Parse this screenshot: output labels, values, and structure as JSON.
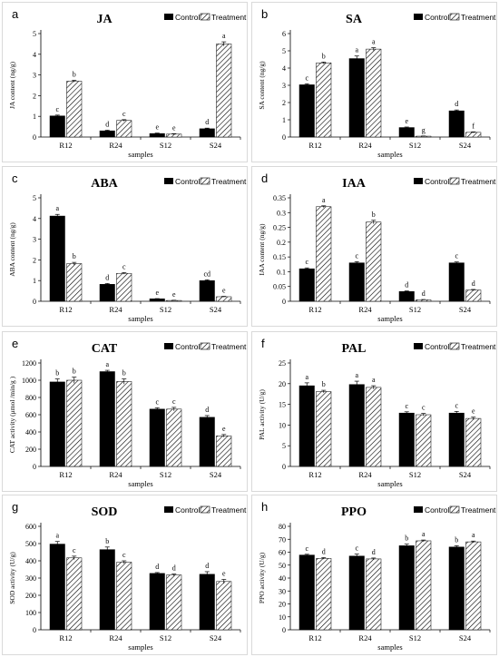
{
  "legend": {
    "control": "Control",
    "treatment": "Treatment"
  },
  "colors": {
    "control": "#000000",
    "treatment_hatch": "#000000",
    "treatment_fill": "#ffffff",
    "border": "#d9d9d9"
  },
  "chart_data": [
    {
      "type": "bar",
      "letter": "a",
      "title": "JA",
      "ylabel": "JA content (ng/g)",
      "xlabel": "samples",
      "categories": [
        "R12",
        "R24",
        "S12",
        "S24"
      ],
      "ylim": [
        0,
        5
      ],
      "yticks": [
        0,
        1,
        2,
        3,
        4,
        5
      ],
      "legend_position": "top-right",
      "series": [
        {
          "name": "Control",
          "values": [
            1.02,
            0.3,
            0.17,
            0.4
          ],
          "errors": [
            0.04,
            0.03,
            0.02,
            0.03
          ],
          "labels": [
            "c",
            "d",
            "e",
            "d"
          ]
        },
        {
          "name": "Treatment",
          "values": [
            2.7,
            0.8,
            0.14,
            4.5
          ],
          "errors": [
            0.04,
            0.04,
            0.02,
            0.1
          ],
          "labels": [
            "b",
            "c",
            "e",
            "a"
          ]
        }
      ]
    },
    {
      "type": "bar",
      "letter": "b",
      "title": "SA",
      "ylabel": "SA content (ng/g)",
      "xlabel": "samples",
      "categories": [
        "R12",
        "R24",
        "S12",
        "S24"
      ],
      "ylim": [
        0,
        6
      ],
      "yticks": [
        0,
        1,
        2,
        3,
        4,
        5,
        6
      ],
      "legend_position": "top-right",
      "series": [
        {
          "name": "Control",
          "values": [
            3.03,
            4.55,
            0.55,
            1.52
          ],
          "errors": [
            0.06,
            0.15,
            0.03,
            0.05
          ],
          "labels": [
            "c",
            "a",
            "e",
            "d"
          ]
        },
        {
          "name": "Treatment",
          "values": [
            4.3,
            5.1,
            0.05,
            0.27
          ],
          "errors": [
            0.05,
            0.08,
            0.01,
            0.03
          ],
          "labels": [
            "b",
            "a",
            "g",
            "f"
          ]
        }
      ]
    },
    {
      "type": "bar",
      "letter": "c",
      "title": "ABA",
      "ylabel": "ABA content (ng/g)",
      "xlabel": "samples",
      "categories": [
        "R12",
        "R24",
        "S12",
        "S24"
      ],
      "ylim": [
        0,
        5
      ],
      "yticks": [
        0,
        1,
        2,
        3,
        4,
        5
      ],
      "legend_position": "top-right",
      "series": [
        {
          "name": "Control",
          "values": [
            4.12,
            0.82,
            0.12,
            1.0
          ],
          "errors": [
            0.08,
            0.04,
            0.01,
            0.04
          ],
          "labels": [
            "a",
            "d",
            "e",
            "cd"
          ]
        },
        {
          "name": "Treatment",
          "values": [
            1.82,
            1.35,
            0.04,
            0.22
          ],
          "errors": [
            0.06,
            0.04,
            0.01,
            0.02
          ],
          "labels": [
            "b",
            "c",
            "e",
            "e"
          ]
        }
      ]
    },
    {
      "type": "bar",
      "letter": "d",
      "title": "IAA",
      "ylabel": "IAA content (ng/g)",
      "xlabel": "samples",
      "categories": [
        "R12",
        "R24",
        "S12",
        "S24"
      ],
      "ylim": [
        0,
        0.35
      ],
      "yticks": [
        0,
        0.05,
        0.1,
        0.15,
        0.2,
        0.25,
        0.3,
        0.35
      ],
      "legend_position": "top-right",
      "series": [
        {
          "name": "Control",
          "values": [
            0.11,
            0.13,
            0.033,
            0.13
          ],
          "errors": [
            0.003,
            0.004,
            0.002,
            0.003
          ],
          "labels": [
            "c",
            "c",
            "d",
            "c"
          ]
        },
        {
          "name": "Treatment",
          "values": [
            0.32,
            0.268,
            0.005,
            0.038
          ],
          "errors": [
            0.003,
            0.006,
            0.001,
            0.002
          ],
          "labels": [
            "a",
            "b",
            "d",
            "d"
          ]
        }
      ]
    },
    {
      "type": "bar",
      "letter": "e",
      "title": "CAT",
      "ylabel": "CAT activity (μmol /min/g )",
      "xlabel": "samples",
      "categories": [
        "R12",
        "R24",
        "S12",
        "S24"
      ],
      "ylim": [
        0,
        1200
      ],
      "yticks": [
        0,
        200,
        400,
        600,
        800,
        1000,
        1200
      ],
      "legend_position": "top-right",
      "series": [
        {
          "name": "Control",
          "values": [
            980,
            1100,
            665,
            570
          ],
          "errors": [
            35,
            15,
            15,
            20
          ],
          "labels": [
            "b",
            "a",
            "c",
            "d"
          ]
        },
        {
          "name": "Treatment",
          "values": [
            1000,
            985,
            665,
            355
          ],
          "errors": [
            35,
            30,
            20,
            15
          ],
          "labels": [
            "b",
            "b",
            "c",
            "e"
          ]
        }
      ]
    },
    {
      "type": "bar",
      "letter": "f",
      "title": "PAL",
      "ylabel": "PAL activity (U/g)",
      "xlabel": "samples",
      "categories": [
        "R12",
        "R24",
        "S12",
        "S24"
      ],
      "ylim": [
        0,
        25
      ],
      "yticks": [
        0,
        5,
        10,
        15,
        20,
        25
      ],
      "legend_position": "top-right",
      "series": [
        {
          "name": "Control",
          "values": [
            19.5,
            19.8,
            12.9,
            12.9
          ],
          "errors": [
            0.7,
            0.8,
            0.3,
            0.4
          ],
          "labels": [
            "a",
            "a",
            "c",
            "c"
          ]
        },
        {
          "name": "Treatment",
          "values": [
            18.1,
            19.1,
            12.5,
            11.6
          ],
          "errors": [
            0.3,
            0.4,
            0.3,
            0.3
          ],
          "labels": [
            "b",
            "a",
            "c",
            "e"
          ]
        }
      ]
    },
    {
      "type": "bar",
      "letter": "g",
      "title": "SOD",
      "ylabel": "SOD activity (U/g)",
      "xlabel": "samples",
      "categories": [
        "R12",
        "R24",
        "S12",
        "S24"
      ],
      "ylim": [
        0,
        600
      ],
      "yticks": [
        0,
        100,
        200,
        300,
        400,
        500,
        600
      ],
      "legend_position": "top-right",
      "series": [
        {
          "name": "Control",
          "values": [
            497,
            465,
            327,
            322
          ],
          "errors": [
            15,
            15,
            5,
            15
          ],
          "labels": [
            "a",
            "b",
            "d",
            "d"
          ]
        },
        {
          "name": "Treatment",
          "values": [
            417,
            392,
            318,
            280
          ],
          "errors": [
            10,
            8,
            5,
            12
          ],
          "labels": [
            "c",
            "c",
            "d",
            "e"
          ]
        }
      ]
    },
    {
      "type": "bar",
      "letter": "h",
      "title": "PPO",
      "ylabel": "PPO activity (U/g)",
      "xlabel": "samples",
      "categories": [
        "R12",
        "R24",
        "S12",
        "S24"
      ],
      "ylim": [
        0,
        80
      ],
      "yticks": [
        0,
        10,
        20,
        30,
        40,
        50,
        60,
        70,
        80
      ],
      "legend_position": "top-right",
      "series": [
        {
          "name": "Control",
          "values": [
            57.8,
            57.0,
            65.0,
            64.0
          ],
          "errors": [
            0.6,
            1.5,
            1.2,
            1.0
          ],
          "labels": [
            "c",
            "c",
            "b",
            "b"
          ]
        },
        {
          "name": "Treatment",
          "values": [
            55.2,
            54.8,
            68.8,
            68.0
          ],
          "errors": [
            0.6,
            0.7,
            0.6,
            0.6
          ],
          "labels": [
            "d",
            "d",
            "a",
            "a"
          ]
        }
      ]
    }
  ]
}
